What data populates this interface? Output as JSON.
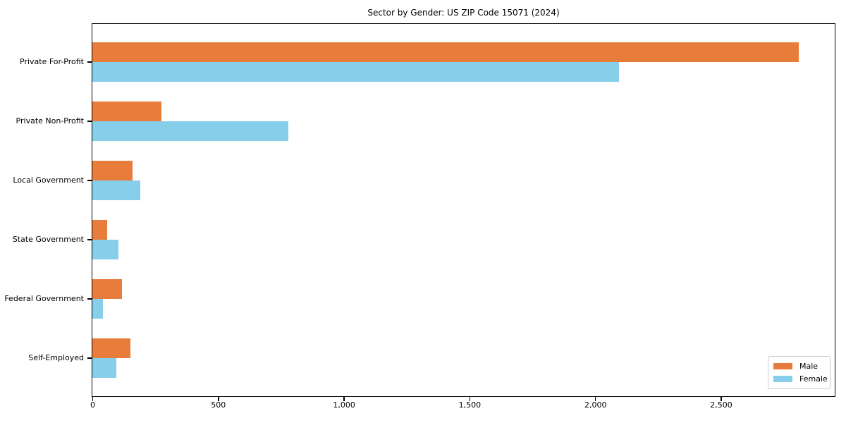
{
  "title": "Sector by Gender: US ZIP Code 15071 (2024)",
  "chart_data": {
    "type": "bar",
    "orientation": "horizontal",
    "title": "Sector by Gender: US ZIP Code 15071 (2024)",
    "categories": [
      "Private For-Profit",
      "Private Non-Profit",
      "Local Government",
      "State Government",
      "Federal Government",
      "Self-Employed"
    ],
    "series": [
      {
        "name": "Male",
        "color": "#E87C3B",
        "values": [
          2810,
          275,
          160,
          58,
          118,
          151
        ]
      },
      {
        "name": "Female",
        "color": "#87CEEB",
        "values": [
          2095,
          780,
          192,
          103,
          42,
          95
        ]
      }
    ],
    "xlabel": "",
    "ylabel": "",
    "xlim": [
      0,
      2950
    ],
    "x_ticks": [
      0,
      500,
      1000,
      1500,
      2000,
      2500
    ],
    "x_tick_labels": [
      "0",
      "500",
      "1,000",
      "1,500",
      "2,000",
      "2,500"
    ],
    "grid": false,
    "legend": {
      "position": "lower right",
      "entries": [
        "Male",
        "Female"
      ]
    },
    "frame_color": "#000000",
    "background_color": "#ffffff"
  }
}
